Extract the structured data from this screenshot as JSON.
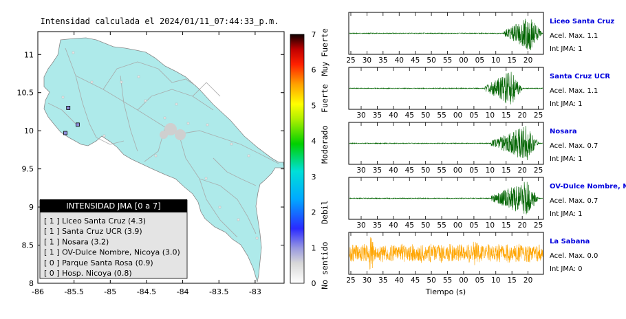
{
  "chart_data": [
    {
      "type": "map",
      "title": "Intensidad calculada el 2024/01/11_07:44:33_p.m.",
      "xticks": [
        "-86",
        "-85.5",
        "-85",
        "-84.5",
        "-84",
        "-83.5",
        "-83"
      ],
      "yticks": [
        "11",
        "10.5",
        "10",
        "9.5",
        "9",
        "8.5",
        "8"
      ],
      "xlim": [
        -86,
        -82.6
      ],
      "ylim": [
        8,
        11.3
      ],
      "colorbar": {
        "ticks": [
          "0",
          "1",
          "2",
          "3",
          "4",
          "5",
          "6",
          "7"
        ],
        "range": [
          0,
          7
        ],
        "labels": [
          "No sentido",
          "Debil",
          "Moderado",
          "Fuerte",
          "Muy Fuerte"
        ]
      },
      "legend": {
        "title": "INTENSIDAD JMA [0 a 7]",
        "items": [
          "[ 1 ]  Liceo Santa Cruz (4.3)",
          "[ 1 ]  Santa Cruz UCR (3.9)",
          "[ 1 ]  Nosara (3.2)",
          "[ 1 ]  OV-Dulce Nombre, Nicoya (3.0)",
          "[ 0 ]  Parque Santa Rosa (0.9)",
          "[ 0 ]  Hosp. Nicoya (0.8)"
        ]
      },
      "stations": [
        {
          "lon": -85.58,
          "lat": 10.3,
          "intensity": 1
        },
        {
          "lon": -85.45,
          "lat": 10.08,
          "intensity": 1
        },
        {
          "lon": -85.62,
          "lat": 9.97,
          "intensity": 1
        }
      ]
    },
    {
      "type": "line",
      "xlabel": "Tiempo (s)",
      "panels": [
        {
          "name": "Liceo Santa Cruz",
          "acel": "Acel. Max. 1.1",
          "jma": "Int JMA: 1",
          "color": "#006400",
          "ticks": [
            "25",
            "30",
            "35",
            "40",
            "45",
            "50",
            "55",
            "00",
            "05",
            "10",
            "15",
            "20"
          ],
          "tick_start": 25,
          "onset": 13,
          "peak": 21
        },
        {
          "name": "Santa Cruz UCR",
          "acel": "Acel. Max. 1.1",
          "jma": "Int JMA: 1",
          "color": "#006400",
          "ticks": [
            "30",
            "35",
            "40",
            "45",
            "50",
            "55",
            "00",
            "05",
            "10",
            "15",
            "20",
            "25"
          ],
          "tick_start": 30,
          "onset": 12,
          "peak": 20
        },
        {
          "name": "Nosara",
          "acel": "Acel. Max. 0.7",
          "jma": "Int JMA: 1",
          "color": "#006400",
          "ticks": [
            "30",
            "35",
            "40",
            "45",
            "50",
            "55",
            "00",
            "05",
            "10",
            "15",
            "20",
            "25"
          ],
          "tick_start": 30,
          "onset": 14,
          "peak": 25
        },
        {
          "name": "OV-Dulce Nombre, Nicoya",
          "acel": "Acel. Max. 0.7",
          "jma": "Int JMA: 1",
          "color": "#006400",
          "ticks": [
            "30",
            "35",
            "40",
            "45",
            "50",
            "55",
            "00",
            "05",
            "10",
            "15",
            "20",
            "25"
          ],
          "tick_start": 30,
          "onset": 14,
          "peak": 25
        },
        {
          "name": "La Sabana",
          "acel": "Acel. Max. 0.0",
          "jma": "Int JMA: 0",
          "color": "#FFA500",
          "ticks": [
            "25",
            "30",
            "35",
            "40",
            "45",
            "50",
            "55",
            "00",
            "05",
            "10",
            "15",
            "20"
          ],
          "tick_start": 25,
          "onset": 0,
          "peak": 0
        }
      ]
    }
  ]
}
